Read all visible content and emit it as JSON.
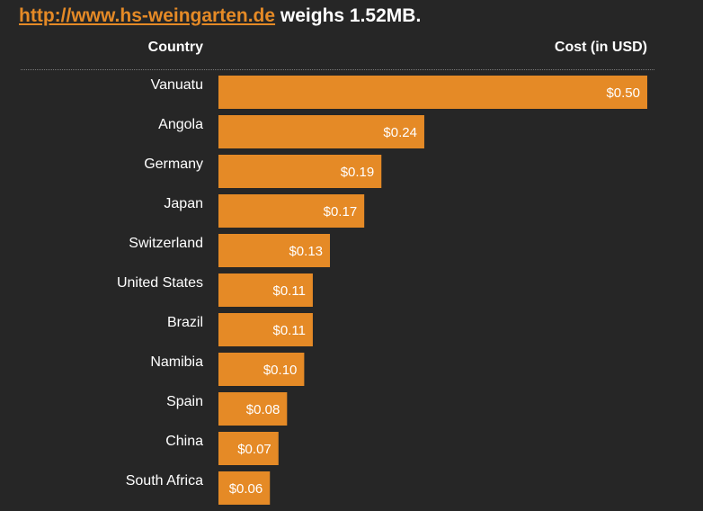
{
  "headline": {
    "url": "http://www.hs-weingarten.de",
    "suffix": " weighs 1.52MB."
  },
  "columns": {
    "country": "Country",
    "cost": "Cost (in USD)"
  },
  "colors": {
    "bar": "#e58a26",
    "background": "#262626",
    "text": "#ffffff"
  },
  "chart_data": {
    "type": "bar",
    "orientation": "horizontal",
    "categories": [
      "Vanuatu",
      "Angola",
      "Germany",
      "Japan",
      "Switzerland",
      "United States",
      "Brazil",
      "Namibia",
      "Spain",
      "China",
      "South Africa"
    ],
    "values": [
      0.5,
      0.24,
      0.19,
      0.17,
      0.13,
      0.11,
      0.11,
      0.1,
      0.08,
      0.07,
      0.06
    ],
    "labels": [
      "$0.50",
      "$0.24",
      "$0.19",
      "$0.17",
      "$0.13",
      "$0.11",
      "$0.11",
      "$0.10",
      "$0.08",
      "$0.07",
      "$0.06"
    ],
    "xlabel": "Cost (in USD)",
    "ylabel": "Country",
    "xlim": [
      0,
      0.5
    ],
    "grid": false,
    "legend": "none"
  }
}
